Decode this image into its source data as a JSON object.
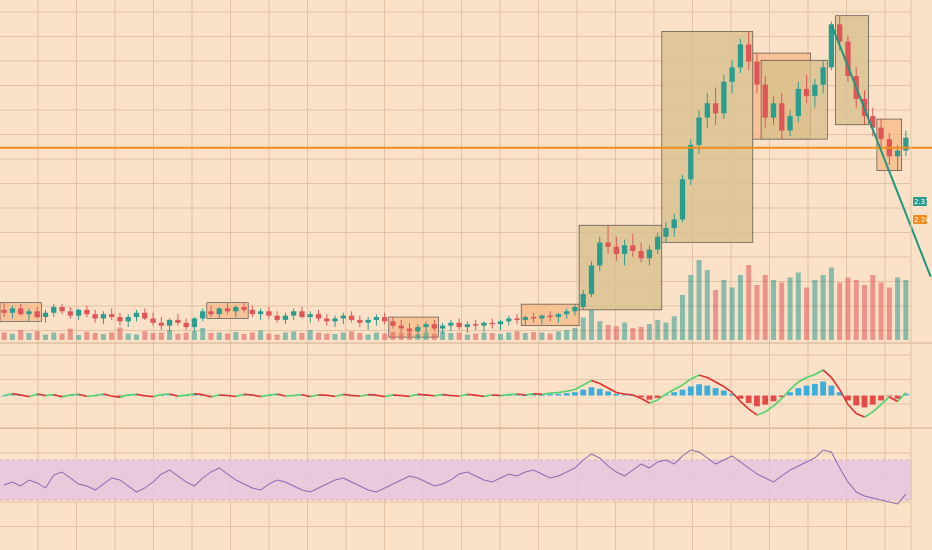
{
  "header": {
    "line1": "",
    "line2": ""
  },
  "price_scale": {
    "last_price_badge": "2.31",
    "level_badge": "2.24"
  },
  "colors": {
    "background": "#fbe1c8",
    "grid": "#e2c3a5",
    "up": "#2a9d8f",
    "down": "#e05555",
    "level_line": "#f28c1e",
    "trendline": "#1a9a7c",
    "zone_orange": "#f7b887",
    "zone_olive": "#d8c08f",
    "oscillator_up": "#4fd36a",
    "oscillator_down": "#e03030",
    "hist_pos": "#1aa5e0",
    "hist_neg": "#e03030",
    "rsi_line": "#8a6bb0",
    "rsi_band": "#e8c6df"
  },
  "chart_data": [
    {
      "type": "candlestick",
      "panel": "price",
      "title": "",
      "xlabel": "",
      "ylabel": "",
      "ylim": [
        0.9,
        3.2
      ],
      "candles": [
        {
          "o": 1.11,
          "h": 1.16,
          "l": 1.06,
          "c": 1.09
        },
        {
          "o": 1.09,
          "h": 1.14,
          "l": 1.05,
          "c": 1.12
        },
        {
          "o": 1.12,
          "h": 1.15,
          "l": 1.07,
          "c": 1.08
        },
        {
          "o": 1.08,
          "h": 1.12,
          "l": 1.03,
          "c": 1.1
        },
        {
          "o": 1.1,
          "h": 1.13,
          "l": 1.05,
          "c": 1.06
        },
        {
          "o": 1.06,
          "h": 1.11,
          "l": 1.02,
          "c": 1.09
        },
        {
          "o": 1.09,
          "h": 1.15,
          "l": 1.06,
          "c": 1.13
        },
        {
          "o": 1.13,
          "h": 1.15,
          "l": 1.08,
          "c": 1.1
        },
        {
          "o": 1.1,
          "h": 1.13,
          "l": 1.05,
          "c": 1.07
        },
        {
          "o": 1.07,
          "h": 1.12,
          "l": 1.04,
          "c": 1.11
        },
        {
          "o": 1.11,
          "h": 1.14,
          "l": 1.06,
          "c": 1.08
        },
        {
          "o": 1.08,
          "h": 1.11,
          "l": 1.02,
          "c": 1.05
        },
        {
          "o": 1.05,
          "h": 1.1,
          "l": 1.01,
          "c": 1.08
        },
        {
          "o": 1.08,
          "h": 1.12,
          "l": 1.04,
          "c": 1.06
        },
        {
          "o": 1.06,
          "h": 1.09,
          "l": 1.0,
          "c": 1.03
        },
        {
          "o": 1.03,
          "h": 1.08,
          "l": 0.99,
          "c": 1.06
        },
        {
          "o": 1.06,
          "h": 1.11,
          "l": 1.03,
          "c": 1.09
        },
        {
          "o": 1.09,
          "h": 1.12,
          "l": 1.04,
          "c": 1.05
        },
        {
          "o": 1.05,
          "h": 1.09,
          "l": 1.0,
          "c": 1.02
        },
        {
          "o": 1.02,
          "h": 1.06,
          "l": 0.97,
          "c": 1.0
        },
        {
          "o": 1.0,
          "h": 1.05,
          "l": 0.96,
          "c": 1.04
        },
        {
          "o": 1.04,
          "h": 1.08,
          "l": 1.0,
          "c": 1.02
        },
        {
          "o": 1.02,
          "h": 1.05,
          "l": 0.97,
          "c": 0.99
        },
        {
          "o": 0.99,
          "h": 1.06,
          "l": 0.96,
          "c": 1.05
        },
        {
          "o": 1.05,
          "h": 1.12,
          "l": 1.03,
          "c": 1.1
        },
        {
          "o": 1.1,
          "h": 1.14,
          "l": 1.06,
          "c": 1.08
        },
        {
          "o": 1.08,
          "h": 1.13,
          "l": 1.05,
          "c": 1.12
        },
        {
          "o": 1.12,
          "h": 1.16,
          "l": 1.08,
          "c": 1.1
        },
        {
          "o": 1.1,
          "h": 1.14,
          "l": 1.06,
          "c": 1.13
        },
        {
          "o": 1.13,
          "h": 1.16,
          "l": 1.09,
          "c": 1.11
        },
        {
          "o": 1.11,
          "h": 1.14,
          "l": 1.06,
          "c": 1.08
        },
        {
          "o": 1.08,
          "h": 1.12,
          "l": 1.04,
          "c": 1.1
        },
        {
          "o": 1.1,
          "h": 1.13,
          "l": 1.05,
          "c": 1.07
        },
        {
          "o": 1.07,
          "h": 1.1,
          "l": 1.02,
          "c": 1.04
        },
        {
          "o": 1.04,
          "h": 1.09,
          "l": 1.01,
          "c": 1.07
        },
        {
          "o": 1.07,
          "h": 1.12,
          "l": 1.04,
          "c": 1.1
        },
        {
          "o": 1.1,
          "h": 1.13,
          "l": 1.05,
          "c": 1.06
        },
        {
          "o": 1.06,
          "h": 1.1,
          "l": 1.02,
          "c": 1.08
        },
        {
          "o": 1.08,
          "h": 1.11,
          "l": 1.03,
          "c": 1.05
        },
        {
          "o": 1.05,
          "h": 1.08,
          "l": 1.0,
          "c": 1.03
        },
        {
          "o": 1.03,
          "h": 1.07,
          "l": 0.99,
          "c": 1.05
        },
        {
          "o": 1.05,
          "h": 1.09,
          "l": 1.01,
          "c": 1.07
        },
        {
          "o": 1.07,
          "h": 1.1,
          "l": 1.02,
          "c": 1.04
        },
        {
          "o": 1.04,
          "h": 1.07,
          "l": 0.99,
          "c": 1.02
        },
        {
          "o": 1.02,
          "h": 1.06,
          "l": 0.97,
          "c": 1.04
        },
        {
          "o": 1.04,
          "h": 1.08,
          "l": 1.0,
          "c": 1.06
        },
        {
          "o": 1.06,
          "h": 1.09,
          "l": 1.01,
          "c": 1.03
        },
        {
          "o": 1.03,
          "h": 1.06,
          "l": 0.98,
          "c": 1.0
        },
        {
          "o": 1.0,
          "h": 1.04,
          "l": 0.95,
          "c": 0.98
        },
        {
          "o": 0.98,
          "h": 1.02,
          "l": 0.93,
          "c": 0.96
        },
        {
          "o": 0.96,
          "h": 1.01,
          "l": 0.92,
          "c": 0.99
        },
        {
          "o": 0.99,
          "h": 1.03,
          "l": 0.95,
          "c": 1.01
        },
        {
          "o": 1.01,
          "h": 1.04,
          "l": 0.96,
          "c": 0.98
        },
        {
          "o": 0.98,
          "h": 1.02,
          "l": 0.94,
          "c": 1.0
        },
        {
          "o": 1.0,
          "h": 1.04,
          "l": 0.96,
          "c": 1.02
        },
        {
          "o": 1.02,
          "h": 1.05,
          "l": 0.97,
          "c": 0.99
        },
        {
          "o": 0.99,
          "h": 1.03,
          "l": 0.95,
          "c": 1.01
        },
        {
          "o": 1.01,
          "h": 1.04,
          "l": 0.97,
          "c": 1.0
        },
        {
          "o": 1.0,
          "h": 1.03,
          "l": 0.96,
          "c": 1.02
        },
        {
          "o": 1.02,
          "h": 1.05,
          "l": 0.98,
          "c": 1.01
        },
        {
          "o": 1.01,
          "h": 1.04,
          "l": 0.97,
          "c": 1.03
        },
        {
          "o": 1.03,
          "h": 1.07,
          "l": 1.0,
          "c": 1.05
        },
        {
          "o": 1.05,
          "h": 1.08,
          "l": 1.01,
          "c": 1.04
        },
        {
          "o": 1.04,
          "h": 1.07,
          "l": 1.0,
          "c": 1.06
        },
        {
          "o": 1.06,
          "h": 1.09,
          "l": 1.02,
          "c": 1.05
        },
        {
          "o": 1.05,
          "h": 1.08,
          "l": 1.01,
          "c": 1.07
        },
        {
          "o": 1.07,
          "h": 1.1,
          "l": 1.03,
          "c": 1.06
        },
        {
          "o": 1.06,
          "h": 1.09,
          "l": 1.02,
          "c": 1.08
        },
        {
          "o": 1.08,
          "h": 1.12,
          "l": 1.05,
          "c": 1.1
        },
        {
          "o": 1.1,
          "h": 1.15,
          "l": 1.07,
          "c": 1.13
        },
        {
          "o": 1.13,
          "h": 1.25,
          "l": 1.11,
          "c": 1.22
        },
        {
          "o": 1.22,
          "h": 1.45,
          "l": 1.2,
          "c": 1.42
        },
        {
          "o": 1.42,
          "h": 1.62,
          "l": 1.38,
          "c": 1.58
        },
        {
          "o": 1.58,
          "h": 1.7,
          "l": 1.5,
          "c": 1.55
        },
        {
          "o": 1.55,
          "h": 1.62,
          "l": 1.45,
          "c": 1.5
        },
        {
          "o": 1.5,
          "h": 1.6,
          "l": 1.42,
          "c": 1.56
        },
        {
          "o": 1.56,
          "h": 1.64,
          "l": 1.48,
          "c": 1.52
        },
        {
          "o": 1.52,
          "h": 1.58,
          "l": 1.44,
          "c": 1.47
        },
        {
          "o": 1.47,
          "h": 1.56,
          "l": 1.42,
          "c": 1.53
        },
        {
          "o": 1.53,
          "h": 1.65,
          "l": 1.5,
          "c": 1.62
        },
        {
          "o": 1.62,
          "h": 1.72,
          "l": 1.58,
          "c": 1.68
        },
        {
          "o": 1.68,
          "h": 1.78,
          "l": 1.62,
          "c": 1.74
        },
        {
          "o": 1.74,
          "h": 2.05,
          "l": 1.72,
          "c": 2.02
        },
        {
          "o": 2.02,
          "h": 2.3,
          "l": 1.98,
          "c": 2.26
        },
        {
          "o": 2.26,
          "h": 2.5,
          "l": 2.2,
          "c": 2.45
        },
        {
          "o": 2.45,
          "h": 2.62,
          "l": 2.38,
          "c": 2.55
        },
        {
          "o": 2.55,
          "h": 2.66,
          "l": 2.4,
          "c": 2.48
        },
        {
          "o": 2.48,
          "h": 2.75,
          "l": 2.44,
          "c": 2.7
        },
        {
          "o": 2.7,
          "h": 2.85,
          "l": 2.62,
          "c": 2.8
        },
        {
          "o": 2.8,
          "h": 3.0,
          "l": 2.76,
          "c": 2.96
        },
        {
          "o": 2.96,
          "h": 3.05,
          "l": 2.78,
          "c": 2.84
        },
        {
          "o": 2.84,
          "h": 2.9,
          "l": 2.62,
          "c": 2.68
        },
        {
          "o": 2.68,
          "h": 2.74,
          "l": 2.38,
          "c": 2.45
        },
        {
          "o": 2.45,
          "h": 2.6,
          "l": 2.4,
          "c": 2.55
        },
        {
          "o": 2.55,
          "h": 2.62,
          "l": 2.3,
          "c": 2.36
        },
        {
          "o": 2.36,
          "h": 2.5,
          "l": 2.32,
          "c": 2.46
        },
        {
          "o": 2.46,
          "h": 2.7,
          "l": 2.42,
          "c": 2.65
        },
        {
          "o": 2.65,
          "h": 2.75,
          "l": 2.55,
          "c": 2.6
        },
        {
          "o": 2.6,
          "h": 2.72,
          "l": 2.52,
          "c": 2.68
        },
        {
          "o": 2.68,
          "h": 2.85,
          "l": 2.62,
          "c": 2.8
        },
        {
          "o": 2.8,
          "h": 3.12,
          "l": 2.78,
          "c": 3.1
        },
        {
          "o": 3.1,
          "h": 3.16,
          "l": 2.92,
          "c": 2.98
        },
        {
          "o": 2.98,
          "h": 3.02,
          "l": 2.7,
          "c": 2.74
        },
        {
          "o": 2.74,
          "h": 2.8,
          "l": 2.52,
          "c": 2.58
        },
        {
          "o": 2.58,
          "h": 2.64,
          "l": 2.4,
          "c": 2.46
        },
        {
          "o": 2.46,
          "h": 2.52,
          "l": 2.32,
          "c": 2.38
        },
        {
          "o": 2.38,
          "h": 2.44,
          "l": 2.24,
          "c": 2.3
        },
        {
          "o": 2.3,
          "h": 2.34,
          "l": 2.12,
          "c": 2.18
        },
        {
          "o": 2.18,
          "h": 2.26,
          "l": 2.08,
          "c": 2.22
        },
        {
          "o": 2.22,
          "h": 2.36,
          "l": 2.18,
          "c": 2.31
        }
      ],
      "volume": [
        30,
        25,
        40,
        28,
        35,
        22,
        30,
        26,
        45,
        20,
        33,
        28,
        24,
        30,
        50,
        26,
        22,
        35,
        28,
        30,
        40,
        25,
        30,
        36,
        48,
        28,
        30,
        26,
        32,
        24,
        30,
        38,
        26,
        22,
        30,
        34,
        28,
        40,
        30,
        26,
        24,
        30,
        35,
        28,
        22,
        30,
        26,
        32,
        28,
        30,
        24,
        30,
        26,
        34,
        28,
        30,
        22,
        26,
        30,
        28,
        24,
        30,
        35,
        28,
        32,
        30,
        26,
        34,
        40,
        48,
        90,
        120,
        75,
        60,
        55,
        70,
        48,
        52,
        64,
        80,
        70,
        95,
        180,
        260,
        320,
        280,
        200,
        240,
        210,
        260,
        300,
        220,
        260,
        240,
        230,
        250,
        270,
        210,
        240,
        260,
        290,
        230,
        250,
        240,
        220,
        260,
        230,
        210,
        250,
        240
      ],
      "horizontal_levels": [
        2.24
      ],
      "trendline": {
        "from": {
          "x": 100,
          "y": 3.1
        },
        "to": {
          "x": 109,
          "y": 1.55
        }
      }
    },
    {
      "type": "line",
      "panel": "oscillator",
      "title": "",
      "values": [
        0.0,
        0.06,
        0.02,
        -0.04,
        0.05,
        0.0,
        0.03,
        -0.05,
        0.02,
        0.04,
        -0.03,
        0.0,
        0.05,
        -0.02,
        -0.06,
        0.02,
        0.04,
        -0.01,
        -0.04,
        0.03,
        0.05,
        -0.02,
        0.01,
        0.06,
        0.03,
        -0.05,
        0.02,
        0.0,
        -0.03,
        0.04,
        0.02,
        -0.04,
        0.01,
        0.05,
        -0.02,
        0.0,
        0.03,
        -0.04,
        0.02,
        0.01,
        -0.03,
        0.04,
        0.0,
        -0.02,
        0.03,
        0.01,
        -0.04,
        0.02,
        0.0,
        -0.03,
        0.04,
        0.02,
        -0.01,
        0.03,
        0.0,
        -0.02,
        0.04,
        0.01,
        -0.03,
        0.02,
        0.0,
        0.03,
        0.05,
        0.02,
        0.06,
        0.04,
        0.08,
        0.1,
        0.14,
        0.2,
        0.35,
        0.5,
        0.4,
        0.25,
        0.1,
        0.05,
        0.02,
        -0.1,
        -0.25,
        -0.15,
        0.05,
        0.2,
        0.35,
        0.55,
        0.68,
        0.6,
        0.45,
        0.3,
        0.1,
        -0.2,
        -0.45,
        -0.65,
        -0.55,
        -0.35,
        -0.1,
        0.2,
        0.45,
        0.6,
        0.7,
        0.85,
        0.6,
        0.2,
        -0.3,
        -0.6,
        -0.72,
        -0.55,
        -0.3,
        -0.05,
        -0.2,
        0.1
      ],
      "ylim": [
        -1,
        1
      ]
    },
    {
      "type": "line",
      "panel": "rsi",
      "title": "",
      "values": [
        45,
        48,
        44,
        50,
        47,
        42,
        55,
        58,
        52,
        46,
        44,
        40,
        46,
        52,
        50,
        44,
        38,
        42,
        48,
        56,
        60,
        54,
        48,
        44,
        52,
        58,
        62,
        56,
        50,
        46,
        42,
        40,
        46,
        50,
        48,
        44,
        40,
        38,
        42,
        46,
        50,
        52,
        48,
        44,
        40,
        38,
        42,
        46,
        50,
        54,
        52,
        48,
        44,
        46,
        50,
        56,
        58,
        54,
        50,
        48,
        52,
        56,
        54,
        58,
        60,
        56,
        52,
        54,
        58,
        62,
        70,
        76,
        72,
        64,
        58,
        54,
        60,
        66,
        62,
        68,
        70,
        66,
        74,
        80,
        78,
        72,
        66,
        70,
        74,
        68,
        62,
        56,
        52,
        48,
        54,
        60,
        64,
        68,
        72,
        80,
        78,
        62,
        48,
        38,
        34,
        32,
        30,
        28,
        26,
        36
      ],
      "ylim": [
        0,
        100
      ],
      "band": [
        30,
        70
      ]
    }
  ]
}
